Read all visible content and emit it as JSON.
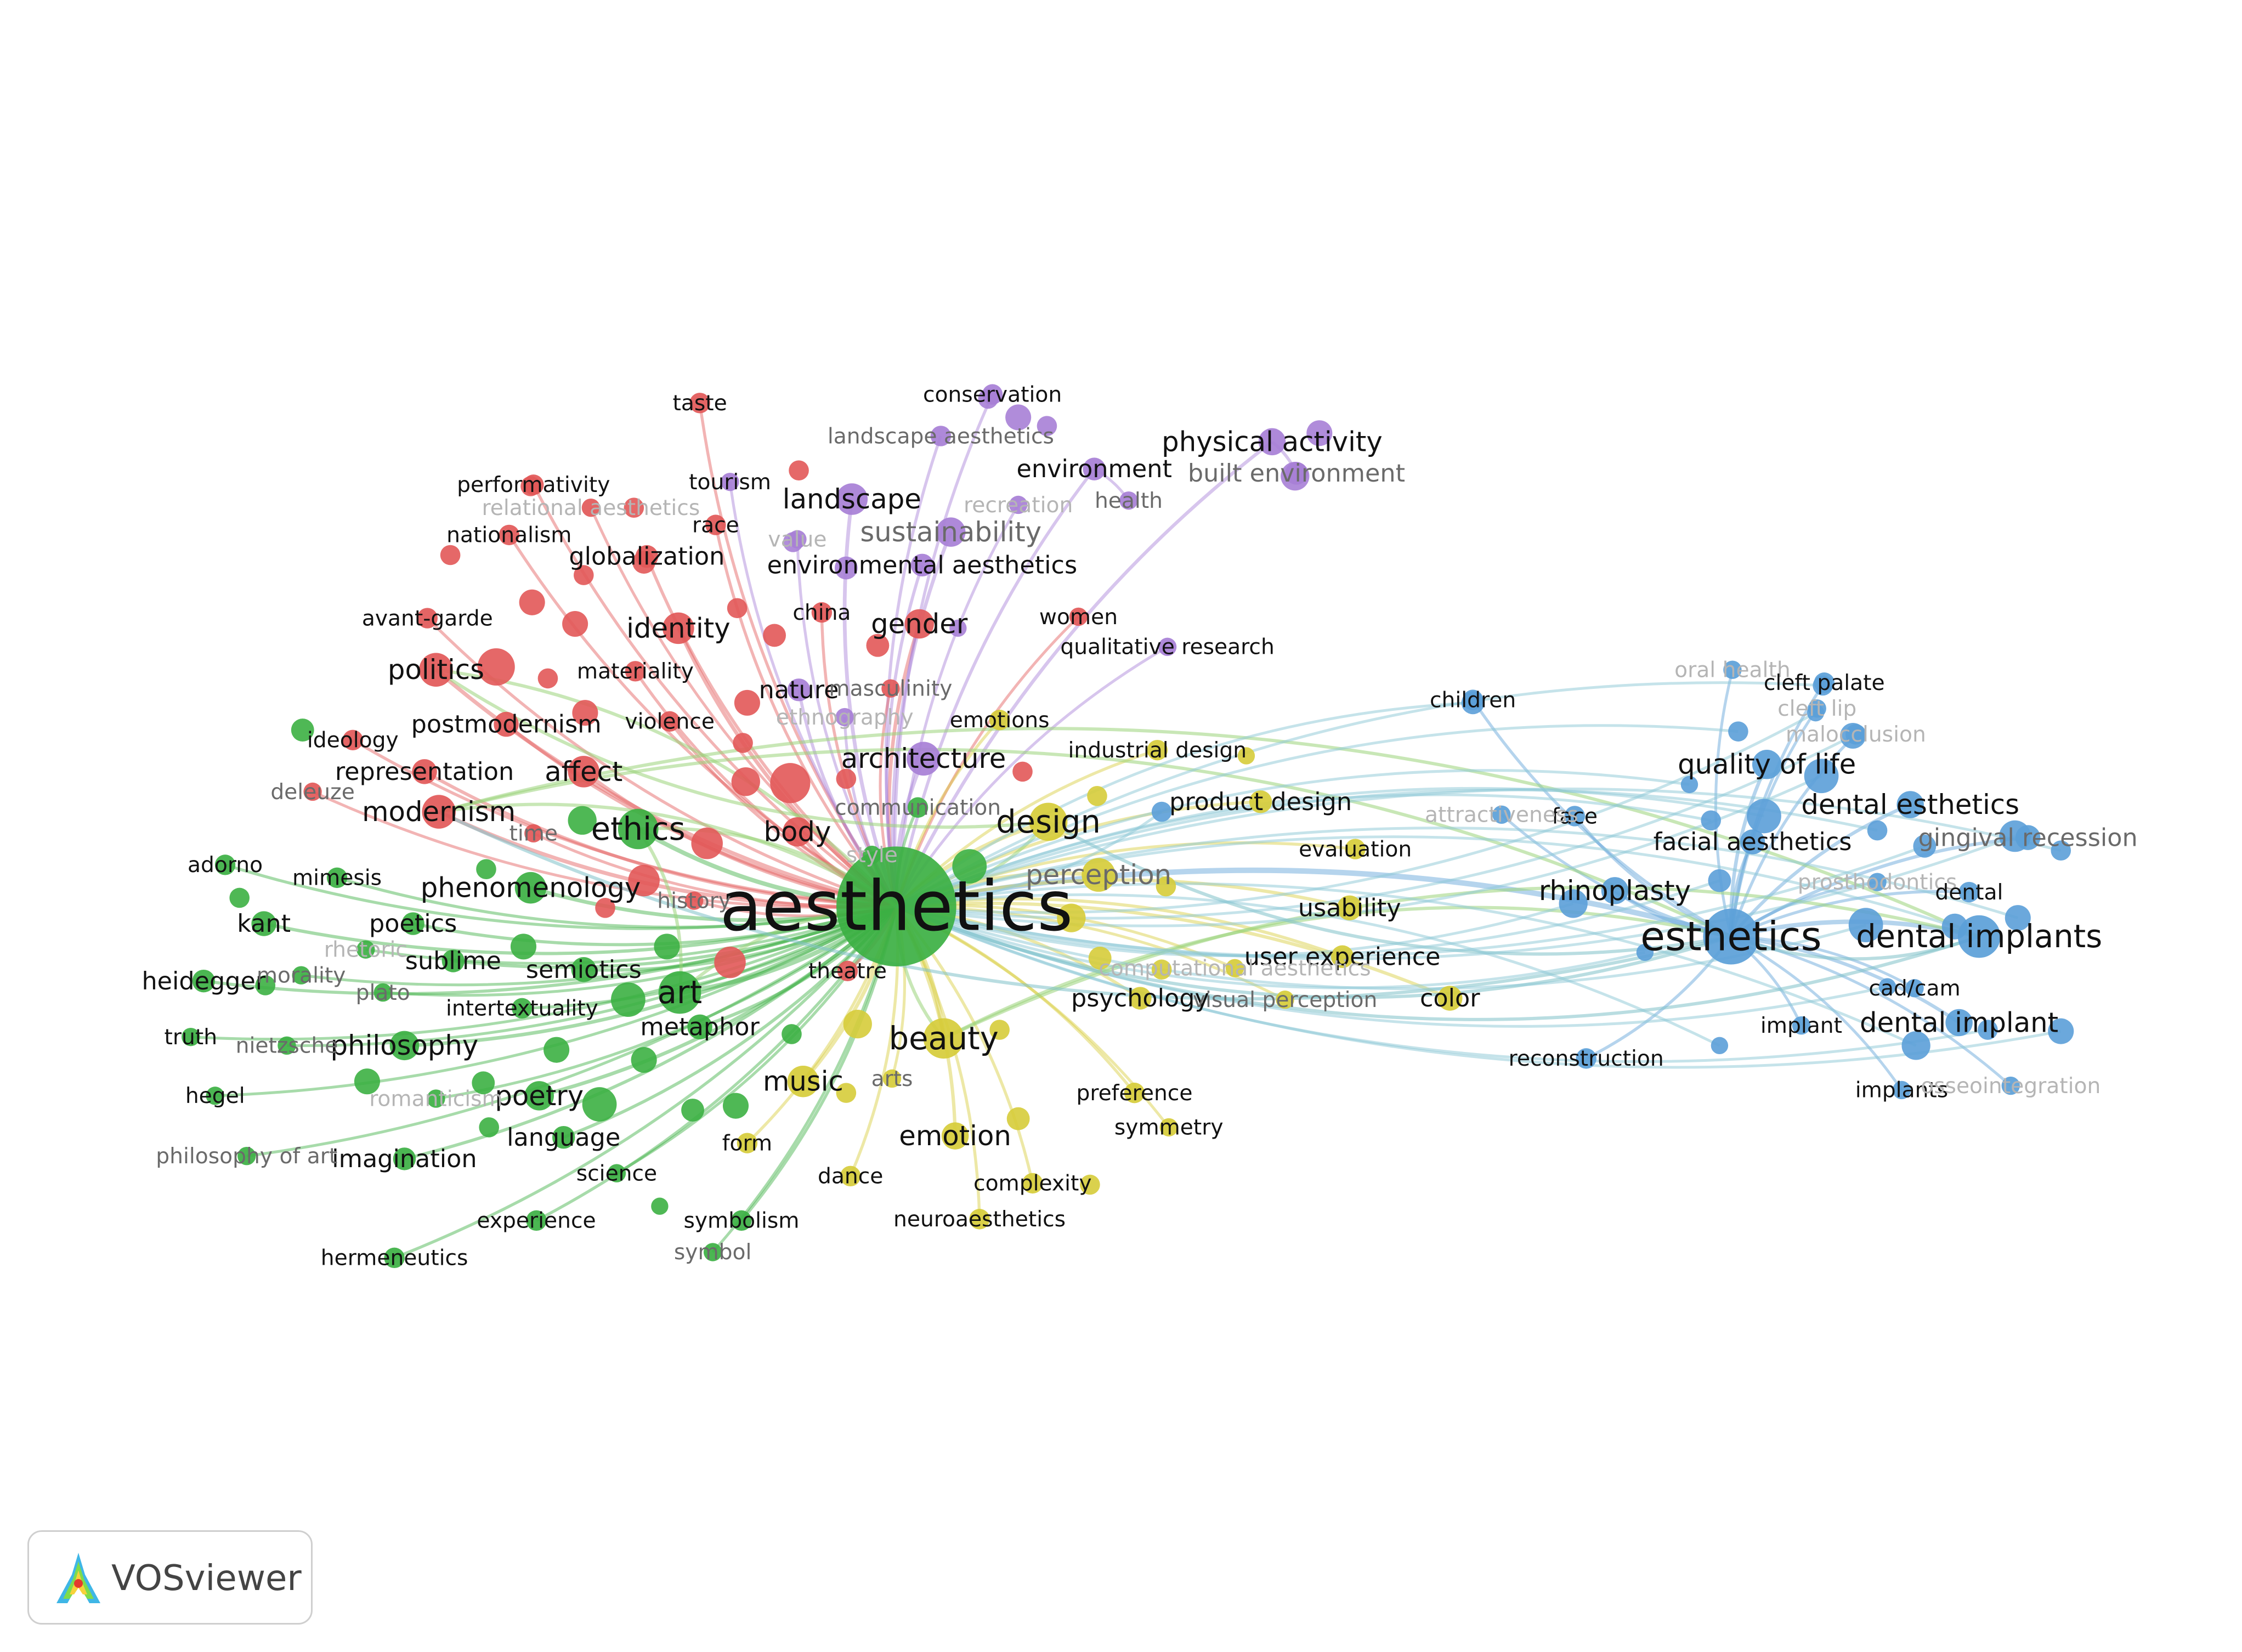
{
  "app": {
    "name": "VOSviewer",
    "logo_icon": "vosviewer-logo-icon"
  },
  "clusters": {
    "red": "#e25858",
    "green": "#3cb043",
    "blue": "#5b9fd8",
    "yellow": "#d6cc3a",
    "purple": "#a77fd6"
  },
  "nodes": [
    {
      "label": "aesthetics",
      "cluster": "green",
      "weight": 1.0,
      "center": "aesthetics"
    },
    {
      "label": "esthetics",
      "cluster": "blue",
      "weight": 0.42,
      "center": "aesthetics"
    },
    {
      "label": "dental implants",
      "cluster": "blue",
      "weight": 0.3,
      "center": "esthetics"
    },
    {
      "label": "art",
      "cluster": "green",
      "weight": 0.3,
      "center": "aesthetics"
    },
    {
      "label": "ethics",
      "cluster": "green",
      "weight": 0.28,
      "center": "aesthetics"
    },
    {
      "label": "beauty",
      "cluster": "yellow",
      "weight": 0.28,
      "center": "aesthetics"
    },
    {
      "label": "design",
      "cluster": "yellow",
      "weight": 0.26,
      "center": "aesthetics"
    },
    {
      "label": "architecture",
      "cluster": "purple",
      "weight": 0.22,
      "center": "aesthetics"
    },
    {
      "label": "perception",
      "cluster": "yellow",
      "weight": 0.22,
      "center": "aesthetics"
    },
    {
      "label": "politics",
      "cluster": "red",
      "weight": 0.22,
      "center": "aesthetics"
    },
    {
      "label": "modernism",
      "cluster": "red",
      "weight": 0.22,
      "center": "aesthetics"
    },
    {
      "label": "affect",
      "cluster": "red",
      "weight": 0.2,
      "center": "aesthetics"
    },
    {
      "label": "identity",
      "cluster": "red",
      "weight": 0.2,
      "center": "aesthetics"
    },
    {
      "label": "gender",
      "cluster": "red",
      "weight": 0.18,
      "center": "aesthetics"
    },
    {
      "label": "body",
      "cluster": "red",
      "weight": 0.18,
      "center": "aesthetics"
    },
    {
      "label": "music",
      "cluster": "yellow",
      "weight": 0.2,
      "center": "aesthetics"
    },
    {
      "label": "emotion",
      "cluster": "yellow",
      "weight": 0.16,
      "center": "aesthetics"
    },
    {
      "label": "phenomenology",
      "cluster": "green",
      "weight": 0.2,
      "center": "aesthetics"
    },
    {
      "label": "philosophy",
      "cluster": "green",
      "weight": 0.18,
      "center": "aesthetics"
    },
    {
      "label": "poetry",
      "cluster": "green",
      "weight": 0.18,
      "center": "aesthetics"
    },
    {
      "label": "landscape",
      "cluster": "purple",
      "weight": 0.2,
      "center": "aesthetics"
    },
    {
      "label": "sustainability",
      "cluster": "purple",
      "weight": 0.18,
      "center": "aesthetics"
    },
    {
      "label": "physical activity",
      "cluster": "purple",
      "weight": 0.16,
      "center": "aesthetics"
    },
    {
      "label": "quality of life",
      "cluster": "blue",
      "weight": 0.18,
      "center": "esthetics"
    },
    {
      "label": "rhinoplasty",
      "cluster": "blue",
      "weight": 0.16,
      "center": "esthetics"
    },
    {
      "label": "dental esthetics",
      "cluster": "blue",
      "weight": 0.16,
      "center": "esthetics"
    },
    {
      "label": "gingival recession",
      "cluster": "blue",
      "weight": 0.14,
      "center": "esthetics"
    },
    {
      "label": "dental implant",
      "cluster": "blue",
      "weight": 0.16,
      "center": "esthetics"
    },
    {
      "label": "facial aesthetics",
      "cluster": "blue",
      "weight": 0.14,
      "center": "esthetics"
    },
    {
      "label": "usability",
      "cluster": "yellow",
      "weight": 0.14,
      "center": "aesthetics"
    },
    {
      "label": "color",
      "cluster": "yellow",
      "weight": 0.14,
      "center": "aesthetics"
    },
    {
      "label": "kant",
      "cluster": "green",
      "weight": 0.14,
      "center": "aesthetics"
    },
    {
      "label": "semiotics",
      "cluster": "green",
      "weight": 0.14,
      "center": "aesthetics"
    },
    {
      "label": "metaphor",
      "cluster": "green",
      "weight": 0.14,
      "center": "aesthetics"
    },
    {
      "label": "imagination",
      "cluster": "green",
      "weight": 0.12,
      "center": "aesthetics"
    },
    {
      "label": "language",
      "cluster": "green",
      "weight": 0.12,
      "center": "aesthetics"
    },
    {
      "label": "sublime",
      "cluster": "green",
      "weight": 0.12,
      "center": "aesthetics"
    },
    {
      "label": "poetics",
      "cluster": "green",
      "weight": 0.12,
      "center": "aesthetics"
    },
    {
      "label": "heidegger",
      "cluster": "green",
      "weight": 0.12,
      "center": "aesthetics"
    },
    {
      "label": "representation",
      "cluster": "red",
      "weight": 0.14,
      "center": "aesthetics"
    },
    {
      "label": "postmodernism",
      "cluster": "red",
      "weight": 0.14,
      "center": "aesthetics"
    },
    {
      "label": "globalization",
      "cluster": "red",
      "weight": 0.12,
      "center": "aesthetics"
    },
    {
      "label": "environmental aesthetics",
      "cluster": "purple",
      "weight": 0.12,
      "center": "aesthetics"
    },
    {
      "label": "environment",
      "cluster": "purple",
      "weight": 0.12,
      "center": "aesthetics"
    },
    {
      "label": "built environment",
      "cluster": "purple",
      "weight": 0.12,
      "center": "physical activity"
    },
    {
      "label": "nature",
      "cluster": "purple",
      "weight": 0.12,
      "center": "aesthetics"
    },
    {
      "label": "psychology",
      "cluster": "yellow",
      "weight": 0.12,
      "center": "aesthetics"
    },
    {
      "label": "user experience",
      "cluster": "yellow",
      "weight": 0.12,
      "center": "aesthetics"
    },
    {
      "label": "product design",
      "cluster": "yellow",
      "weight": 0.12,
      "center": "aesthetics"
    },
    {
      "label": "taste",
      "cluster": "red",
      "weight": 0.1,
      "center": "aesthetics"
    },
    {
      "label": "conservation",
      "cluster": "purple",
      "weight": 0.1,
      "center": "aesthetics"
    },
    {
      "label": "landscape aesthetics",
      "cluster": "purple",
      "weight": 0.1,
      "center": "aesthetics"
    },
    {
      "label": "tourism",
      "cluster": "purple",
      "weight": 0.08,
      "center": "aesthetics"
    },
    {
      "label": "health",
      "cluster": "purple",
      "weight": 0.08,
      "center": "environment"
    },
    {
      "label": "recreation",
      "cluster": "purple",
      "weight": 0.08,
      "center": "aesthetics"
    },
    {
      "label": "value",
      "cluster": "purple",
      "weight": 0.08,
      "center": "aesthetics"
    },
    {
      "label": "performativity",
      "cluster": "red",
      "weight": 0.1,
      "center": "aesthetics"
    },
    {
      "label": "relational aesthetics",
      "cluster": "red",
      "weight": 0.08,
      "center": "aesthetics"
    },
    {
      "label": "nationalism",
      "cluster": "red",
      "weight": 0.1,
      "center": "aesthetics"
    },
    {
      "label": "race",
      "cluster": "red",
      "weight": 0.1,
      "center": "aesthetics"
    },
    {
      "label": "avant-garde",
      "cluster": "red",
      "weight": 0.1,
      "center": "aesthetics"
    },
    {
      "label": "china",
      "cluster": "red",
      "weight": 0.1,
      "center": "aesthetics"
    },
    {
      "label": "women",
      "cluster": "red",
      "weight": 0.08,
      "center": "aesthetics"
    },
    {
      "label": "qualitative research",
      "cluster": "purple",
      "weight": 0.08,
      "center": "aesthetics"
    },
    {
      "label": "materiality",
      "cluster": "red",
      "weight": 0.1,
      "center": "aesthetics"
    },
    {
      "label": "masculinity",
      "cluster": "red",
      "weight": 0.08,
      "center": "aesthetics"
    },
    {
      "label": "ethnography",
      "cluster": "purple",
      "weight": 0.08,
      "center": "aesthetics"
    },
    {
      "label": "emotions",
      "cluster": "yellow",
      "weight": 0.1,
      "center": "aesthetics"
    },
    {
      "label": "violence",
      "cluster": "red",
      "weight": 0.1,
      "center": "aesthetics"
    },
    {
      "label": "ideology",
      "cluster": "red",
      "weight": 0.1,
      "center": "aesthetics"
    },
    {
      "label": "deleuze",
      "cluster": "red",
      "weight": 0.08,
      "center": "aesthetics"
    },
    {
      "label": "time",
      "cluster": "red",
      "weight": 0.08,
      "center": "aesthetics"
    },
    {
      "label": "communication",
      "cluster": "green",
      "weight": 0.1,
      "center": "aesthetics"
    },
    {
      "label": "industrial design",
      "cluster": "yellow",
      "weight": 0.1,
      "center": "aesthetics"
    },
    {
      "label": "evaluation",
      "cluster": "yellow",
      "weight": 0.1,
      "center": "aesthetics"
    },
    {
      "label": "children",
      "cluster": "blue",
      "weight": 0.1,
      "center": "esthetics"
    },
    {
      "label": "face",
      "cluster": "blue",
      "weight": 0.1,
      "center": "esthetics"
    },
    {
      "label": "attractiveness",
      "cluster": "blue",
      "weight": 0.08,
      "center": "esthetics"
    },
    {
      "label": "oral health",
      "cluster": "blue",
      "weight": 0.08,
      "center": "esthetics"
    },
    {
      "label": "cleft palate",
      "cluster": "blue",
      "weight": 0.1,
      "center": "esthetics"
    },
    {
      "label": "cleft lip",
      "cluster": "blue",
      "weight": 0.08,
      "center": "esthetics"
    },
    {
      "label": "malocclusion",
      "cluster": "blue",
      "weight": 0.1,
      "center": "esthetics"
    },
    {
      "label": "prosthodontics",
      "cluster": "blue",
      "weight": 0.08,
      "center": "esthetics"
    },
    {
      "label": "dental",
      "cluster": "blue",
      "weight": 0.1,
      "center": "esthetics"
    },
    {
      "label": "cad/cam",
      "cluster": "blue",
      "weight": 0.08,
      "center": "esthetics"
    },
    {
      "label": "implant",
      "cluster": "blue",
      "weight": 0.08,
      "center": "esthetics"
    },
    {
      "label": "implants",
      "cluster": "blue",
      "weight": 0.08,
      "center": "esthetics"
    },
    {
      "label": "osseointegration",
      "cluster": "blue",
      "weight": 0.08,
      "center": "esthetics"
    },
    {
      "label": "reconstruction",
      "cluster": "blue",
      "weight": 0.1,
      "center": "esthetics"
    },
    {
      "label": "adorno",
      "cluster": "green",
      "weight": 0.1,
      "center": "aesthetics"
    },
    {
      "label": "mimesis",
      "cluster": "green",
      "weight": 0.1,
      "center": "aesthetics"
    },
    {
      "label": "rhetoric",
      "cluster": "green",
      "weight": 0.08,
      "center": "aesthetics"
    },
    {
      "label": "morality",
      "cluster": "green",
      "weight": 0.08,
      "center": "aesthetics"
    },
    {
      "label": "plato",
      "cluster": "green",
      "weight": 0.08,
      "center": "aesthetics"
    },
    {
      "label": "truth",
      "cluster": "green",
      "weight": 0.08,
      "center": "aesthetics"
    },
    {
      "label": "nietzsche",
      "cluster": "green",
      "weight": 0.08,
      "center": "aesthetics"
    },
    {
      "label": "hegel",
      "cluster": "green",
      "weight": 0.08,
      "center": "aesthetics"
    },
    {
      "label": "philosophy of art",
      "cluster": "green",
      "weight": 0.08,
      "center": "aesthetics"
    },
    {
      "label": "intertextuality",
      "cluster": "green",
      "weight": 0.1,
      "center": "aesthetics"
    },
    {
      "label": "romanticism",
      "cluster": "green",
      "weight": 0.08,
      "center": "aesthetics"
    },
    {
      "label": "science",
      "cluster": "green",
      "weight": 0.08,
      "center": "aesthetics"
    },
    {
      "label": "experience",
      "cluster": "green",
      "weight": 0.1,
      "center": "aesthetics"
    },
    {
      "label": "hermeneutics",
      "cluster": "green",
      "weight": 0.1,
      "center": "aesthetics"
    },
    {
      "label": "symbolism",
      "cluster": "green",
      "weight": 0.1,
      "center": "aesthetics"
    },
    {
      "label": "symbol",
      "cluster": "green",
      "weight": 0.08,
      "center": "aesthetics"
    },
    {
      "label": "form",
      "cluster": "yellow",
      "weight": 0.1,
      "center": "aesthetics"
    },
    {
      "label": "theatre",
      "cluster": "red",
      "weight": 0.1,
      "center": "aesthetics"
    },
    {
      "label": "history",
      "cluster": "red",
      "weight": 0.08,
      "center": "aesthetics"
    },
    {
      "label": "arts",
      "cluster": "yellow",
      "weight": 0.08,
      "center": "aesthetics"
    },
    {
      "label": "dance",
      "cluster": "yellow",
      "weight": 0.1,
      "center": "aesthetics"
    },
    {
      "label": "complexity",
      "cluster": "yellow",
      "weight": 0.1,
      "center": "aesthetics"
    },
    {
      "label": "neuroaesthetics",
      "cluster": "yellow",
      "weight": 0.1,
      "center": "aesthetics"
    },
    {
      "label": "preference",
      "cluster": "yellow",
      "weight": 0.1,
      "center": "aesthetics"
    },
    {
      "label": "symmetry",
      "cluster": "yellow",
      "weight": 0.08,
      "center": "aesthetics"
    },
    {
      "label": "visual perception",
      "cluster": "yellow",
      "weight": 0.08,
      "center": "aesthetics"
    },
    {
      "label": "computational aesthetics",
      "cluster": "yellow",
      "weight": 0.08,
      "center": "aesthetics"
    },
    {
      "label": "style",
      "cluster": "green",
      "weight": 0.08,
      "center": "aesthetics"
    }
  ]
}
